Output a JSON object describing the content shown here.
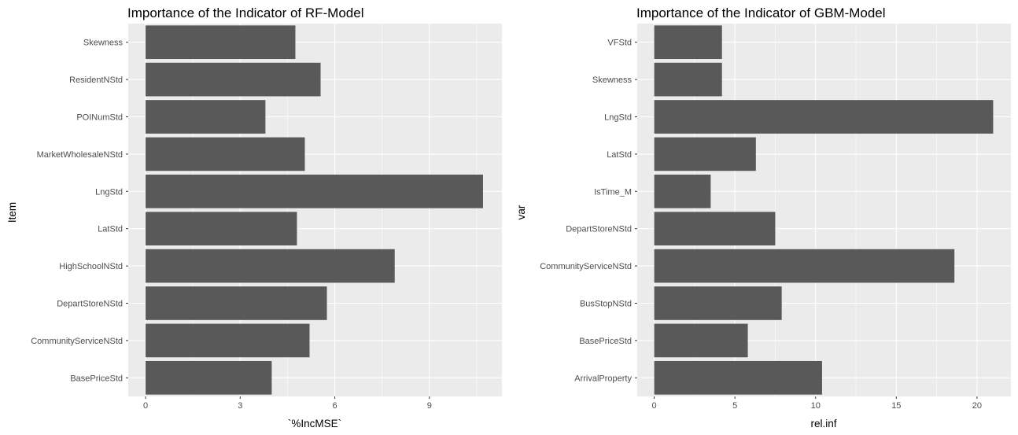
{
  "chart_data": [
    {
      "type": "bar",
      "orientation": "horizontal",
      "title": "Importance of the Indicator of RF-Model",
      "xlabel": "`%IncMSE`",
      "ylabel": "Item",
      "xlim": [
        -0.55,
        11.3
      ],
      "xticks": [
        0,
        3,
        6,
        9
      ],
      "grid": true,
      "categories": [
        "BasePriceStd",
        "CommunityServiceNStd",
        "DepartStoreNStd",
        "HighSchoolNStd",
        "LatStd",
        "LngStd",
        "MarketWholesaleNStd",
        "POINumStd",
        "ResidentNStd",
        "Skewness"
      ],
      "values": [
        4.0,
        5.2,
        5.75,
        7.9,
        4.8,
        10.7,
        5.05,
        3.8,
        5.55,
        4.75
      ],
      "bar_color": "#595959",
      "panel_color": "#ebebeb"
    },
    {
      "type": "bar",
      "orientation": "horizontal",
      "title": "Importance of the Indicator of GBM-Model",
      "xlabel": "rel.inf",
      "ylabel": "var",
      "xlim": [
        -1.05,
        22.1
      ],
      "xticks": [
        0,
        5,
        10,
        15,
        20
      ],
      "grid": true,
      "categories": [
        "ArrivalProperty",
        "BasePriceStd",
        "BusStopNStd",
        "CommunityServiceNStd",
        "DepartStoreNStd",
        "IsTime_M",
        "LatStd",
        "LngStd",
        "Skewness",
        "VFStd"
      ],
      "values": [
        10.4,
        5.8,
        7.9,
        18.6,
        7.5,
        3.5,
        6.3,
        21.0,
        4.2,
        4.2
      ],
      "bar_color": "#595959",
      "panel_color": "#ebebeb"
    }
  ]
}
